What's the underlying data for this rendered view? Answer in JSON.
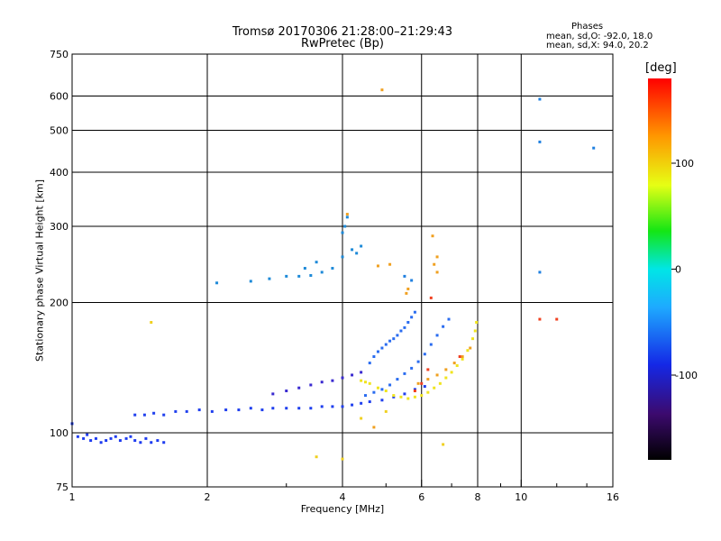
{
  "chart_data": {
    "type": "scatter",
    "title": "Tromsø 20170306 21:28:00–21:29:43",
    "subtitle": "RwPretec (Bp)",
    "stats": {
      "heading": "Phases",
      "o_mode": "mean, sd,O: -92.0, 18.0",
      "x_mode": "mean, sd,X:  94.0, 20.2"
    },
    "xlabel": "Frequency [MHz]",
    "ylabel": "Stationary phase Virtual Height [km]",
    "x_scale": "log",
    "y_scale": "log",
    "xlim": [
      1,
      16
    ],
    "ylim": [
      75,
      750
    ],
    "x_ticks": [
      1,
      2,
      4,
      6,
      8,
      10,
      16
    ],
    "y_ticks": [
      75,
      100,
      200,
      300,
      400,
      500,
      600,
      750
    ],
    "x_grid": [
      2,
      4,
      6,
      8,
      10
    ],
    "y_grid": [
      100,
      200,
      300,
      400,
      500,
      600
    ],
    "grid": true,
    "colorbar": {
      "label": "[deg]",
      "range": [
        -180,
        180
      ],
      "ticks": [
        100,
        0,
        -100
      ]
    },
    "series": [
      {
        "color": "#1e3cf0",
        "points": [
          [
            1.0,
            105
          ],
          [
            1.03,
            98
          ],
          [
            1.06,
            97
          ],
          [
            1.08,
            99
          ],
          [
            1.1,
            96
          ],
          [
            1.13,
            97
          ],
          [
            1.16,
            95
          ],
          [
            1.19,
            96
          ],
          [
            1.22,
            97
          ],
          [
            1.25,
            98
          ],
          [
            1.28,
            96
          ],
          [
            1.32,
            97
          ],
          [
            1.35,
            98
          ],
          [
            1.38,
            96
          ],
          [
            1.42,
            95
          ],
          [
            1.46,
            97
          ],
          [
            1.5,
            95
          ],
          [
            1.55,
            96
          ],
          [
            1.6,
            95
          ]
        ]
      },
      {
        "color": "#2040ee",
        "points": [
          [
            1.38,
            110
          ],
          [
            1.45,
            110
          ],
          [
            1.52,
            111
          ],
          [
            1.6,
            110
          ],
          [
            1.7,
            112
          ],
          [
            1.8,
            112
          ],
          [
            1.92,
            113
          ],
          [
            2.05,
            112
          ],
          [
            2.2,
            113
          ],
          [
            2.35,
            113
          ],
          [
            2.5,
            114
          ],
          [
            2.65,
            113
          ],
          [
            2.8,
            114
          ],
          [
            3.0,
            114
          ],
          [
            3.2,
            114
          ],
          [
            3.4,
            114
          ],
          [
            3.6,
            115
          ],
          [
            3.8,
            115
          ],
          [
            4.0,
            115
          ],
          [
            4.2,
            116
          ],
          [
            4.4,
            117
          ],
          [
            4.6,
            118
          ],
          [
            4.9,
            119
          ],
          [
            5.2,
            121
          ],
          [
            5.5,
            123
          ],
          [
            5.8,
            126
          ],
          [
            6.1,
            128
          ]
        ]
      },
      {
        "color": "#3a2ad0",
        "points": [
          [
            2.8,
            123
          ],
          [
            3.0,
            125
          ],
          [
            3.2,
            127
          ],
          [
            3.4,
            129
          ],
          [
            3.6,
            131
          ],
          [
            3.8,
            132
          ],
          [
            4.0,
            134
          ],
          [
            4.2,
            136
          ],
          [
            4.4,
            138
          ]
        ]
      },
      {
        "color": "#2a6cf0",
        "points": [
          [
            4.6,
            145
          ],
          [
            4.7,
            150
          ],
          [
            4.8,
            154
          ],
          [
            4.9,
            157
          ],
          [
            5.0,
            160
          ],
          [
            5.1,
            163
          ],
          [
            5.2,
            165
          ],
          [
            5.3,
            168
          ],
          [
            5.4,
            172
          ],
          [
            5.5,
            175
          ],
          [
            5.6,
            180
          ],
          [
            5.7,
            185
          ],
          [
            5.8,
            190
          ]
        ]
      },
      {
        "color": "#2a6cf0",
        "points": [
          [
            4.5,
            122
          ],
          [
            4.7,
            124
          ],
          [
            4.9,
            126
          ],
          [
            5.1,
            129
          ],
          [
            5.3,
            133
          ],
          [
            5.5,
            137
          ],
          [
            5.7,
            141
          ],
          [
            5.9,
            146
          ],
          [
            6.1,
            152
          ],
          [
            6.3,
            160
          ],
          [
            6.5,
            168
          ],
          [
            6.7,
            176
          ],
          [
            6.9,
            183
          ]
        ]
      },
      {
        "color": "#f0e41e",
        "points": [
          [
            4.4,
            132
          ],
          [
            4.5,
            131
          ],
          [
            4.6,
            130
          ],
          [
            4.8,
            127
          ],
          [
            5.0,
            125
          ],
          [
            5.2,
            122
          ],
          [
            5.4,
            121
          ],
          [
            5.6,
            120
          ],
          [
            5.8,
            121
          ],
          [
            6.0,
            122
          ],
          [
            6.2,
            124
          ],
          [
            6.4,
            127
          ],
          [
            6.6,
            130
          ],
          [
            6.8,
            134
          ],
          [
            7.0,
            138
          ],
          [
            7.2,
            143
          ],
          [
            7.4,
            148
          ],
          [
            7.6,
            155
          ],
          [
            7.8,
            165
          ],
          [
            7.9,
            172
          ],
          [
            7.95,
            180
          ]
        ]
      },
      {
        "color": "#f0a020",
        "points": [
          [
            5.9,
            130
          ],
          [
            6.2,
            133
          ],
          [
            6.5,
            136
          ],
          [
            6.8,
            140
          ],
          [
            7.1,
            145
          ],
          [
            7.4,
            150
          ],
          [
            7.7,
            157
          ]
        ]
      },
      {
        "color": "#1e8ad8",
        "points": [
          [
            2.1,
            222
          ],
          [
            2.5,
            224
          ],
          [
            2.75,
            227
          ],
          [
            3.0,
            230
          ],
          [
            3.2,
            230
          ],
          [
            3.4,
            231
          ],
          [
            3.6,
            235
          ],
          [
            3.8,
            240
          ],
          [
            4.0,
            255
          ],
          [
            4.2,
            265
          ],
          [
            4.4,
            270
          ],
          [
            3.5,
            248
          ],
          [
            3.3,
            240
          ],
          [
            4.1,
            315
          ],
          [
            4.05,
            300
          ],
          [
            4.0,
            290
          ],
          [
            4.3,
            260
          ]
        ]
      },
      {
        "color": "#f0a020",
        "points": [
          [
            4.9,
            620
          ],
          [
            4.1,
            320
          ],
          [
            6.35,
            285
          ],
          [
            6.5,
            255
          ],
          [
            6.4,
            245
          ],
          [
            6.5,
            235
          ],
          [
            5.6,
            215
          ],
          [
            5.55,
            210
          ],
          [
            4.8,
            243
          ],
          [
            5.1,
            245
          ],
          [
            4.7,
            103
          ]
        ]
      },
      {
        "color": "#f04020",
        "points": [
          [
            6.3,
            205
          ],
          [
            6.2,
            140
          ],
          [
            6.0,
            130
          ],
          [
            5.8,
            125
          ],
          [
            7.3,
            150
          ],
          [
            11.0,
            183
          ],
          [
            12.0,
            183
          ]
        ]
      },
      {
        "color": "#2080e0",
        "points": [
          [
            11.0,
            590
          ],
          [
            11.0,
            470
          ],
          [
            14.5,
            455
          ],
          [
            11.0,
            235
          ],
          [
            5.7,
            225
          ],
          [
            5.5,
            230
          ]
        ]
      },
      {
        "color": "#f0d020",
        "points": [
          [
            1.5,
            180
          ],
          [
            3.5,
            88
          ],
          [
            4.0,
            87
          ],
          [
            6.7,
            94
          ],
          [
            4.4,
            108
          ],
          [
            5.0,
            112
          ]
        ]
      }
    ]
  }
}
